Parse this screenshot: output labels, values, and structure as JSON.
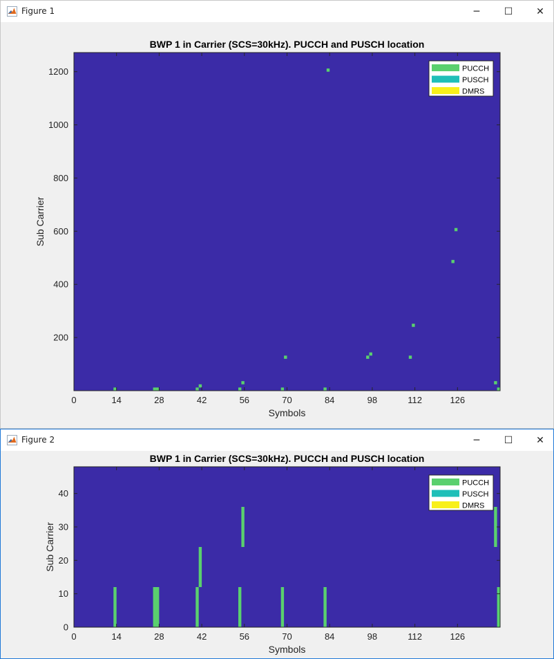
{
  "windows": [
    {
      "title": "Figure 1",
      "controls": {
        "minimize": "─",
        "maximize": "☐",
        "close": "✕"
      }
    },
    {
      "title": "Figure 2",
      "controls": {
        "minimize": "─",
        "maximize": "☐",
        "close": "✕"
      }
    }
  ],
  "colors": {
    "background": "#3b2ba7",
    "pucch": "#5ad06e",
    "pusch": "#1fbfb8",
    "dmrs": "#f8f01a"
  },
  "chart_data": [
    {
      "type": "heatmap",
      "title": "BWP 1 in Carrier (SCS=30kHz). PUCCH and PUSCH location",
      "xlabel": "Symbols",
      "ylabel": "Sub Carrier",
      "xlim": [
        0,
        140
      ],
      "ylim": [
        0,
        1272
      ],
      "xticks": [
        0,
        14,
        28,
        42,
        56,
        70,
        84,
        98,
        112,
        126
      ],
      "yticks": [
        200,
        400,
        600,
        800,
        1000,
        1200
      ],
      "legend": {
        "placement": "top-right",
        "entries": [
          "PUCCH",
          "PUSCH",
          "DMRS"
        ]
      },
      "blocks": [
        {
          "x0": 13,
          "x1": 14,
          "y0": 0,
          "y1": 12
        },
        {
          "x0": 26,
          "x1": 28,
          "y0": 0,
          "y1": 12
        },
        {
          "x0": 40,
          "x1": 41,
          "y0": 0,
          "y1": 12
        },
        {
          "x0": 41,
          "x1": 42,
          "y0": 12,
          "y1": 24
        },
        {
          "x0": 54,
          "x1": 55,
          "y0": 0,
          "y1": 12
        },
        {
          "x0": 55,
          "x1": 56,
          "y0": 24,
          "y1": 36
        },
        {
          "x0": 68,
          "x1": 69,
          "y0": 0,
          "y1": 12
        },
        {
          "x0": 69,
          "x1": 70,
          "y0": 120,
          "y1": 132
        },
        {
          "x0": 82,
          "x1": 83,
          "y0": 0,
          "y1": 12
        },
        {
          "x0": 83,
          "x1": 84,
          "y0": 1200,
          "y1": 1212
        },
        {
          "x0": 96,
          "x1": 97,
          "y0": 120,
          "y1": 132
        },
        {
          "x0": 97,
          "x1": 98,
          "y0": 132,
          "y1": 144
        },
        {
          "x0": 110,
          "x1": 111,
          "y0": 120,
          "y1": 132
        },
        {
          "x0": 111,
          "x1": 112,
          "y0": 240,
          "y1": 252
        },
        {
          "x0": 124,
          "x1": 125,
          "y0": 480,
          "y1": 492
        },
        {
          "x0": 125,
          "x1": 126,
          "y0": 600,
          "y1": 612
        },
        {
          "x0": 138,
          "x1": 139,
          "y0": 24,
          "y1": 36
        },
        {
          "x0": 139,
          "x1": 140,
          "y0": 0,
          "y1": 12
        }
      ]
    },
    {
      "type": "heatmap",
      "title": "BWP 1 in Carrier (SCS=30kHz). PUCCH and PUSCH location",
      "xlabel": "Symbols",
      "ylabel": "Sub Carrier",
      "xlim": [
        0,
        140
      ],
      "ylim": [
        0,
        48
      ],
      "xticks": [
        0,
        14,
        28,
        42,
        56,
        70,
        84,
        98,
        112,
        126
      ],
      "yticks": [
        0,
        10,
        20,
        30,
        40
      ],
      "legend": {
        "placement": "top-right",
        "entries": [
          "PUCCH",
          "PUSCH",
          "DMRS"
        ]
      },
      "blocks": [
        {
          "x0": 13,
          "x1": 14,
          "y0": 0,
          "y1": 12
        },
        {
          "x0": 26,
          "x1": 28,
          "y0": 0,
          "y1": 12
        },
        {
          "x0": 40,
          "x1": 41,
          "y0": 0,
          "y1": 12
        },
        {
          "x0": 41,
          "x1": 42,
          "y0": 12,
          "y1": 24
        },
        {
          "x0": 54,
          "x1": 55,
          "y0": 0,
          "y1": 12
        },
        {
          "x0": 55,
          "x1": 56,
          "y0": 24,
          "y1": 36
        },
        {
          "x0": 68,
          "x1": 69,
          "y0": 0,
          "y1": 12
        },
        {
          "x0": 82,
          "x1": 83,
          "y0": 0,
          "y1": 12
        },
        {
          "x0": 138,
          "x1": 139,
          "y0": 24,
          "y1": 36
        },
        {
          "x0": 139,
          "x1": 140,
          "y0": 0,
          "y1": 12
        }
      ]
    }
  ]
}
